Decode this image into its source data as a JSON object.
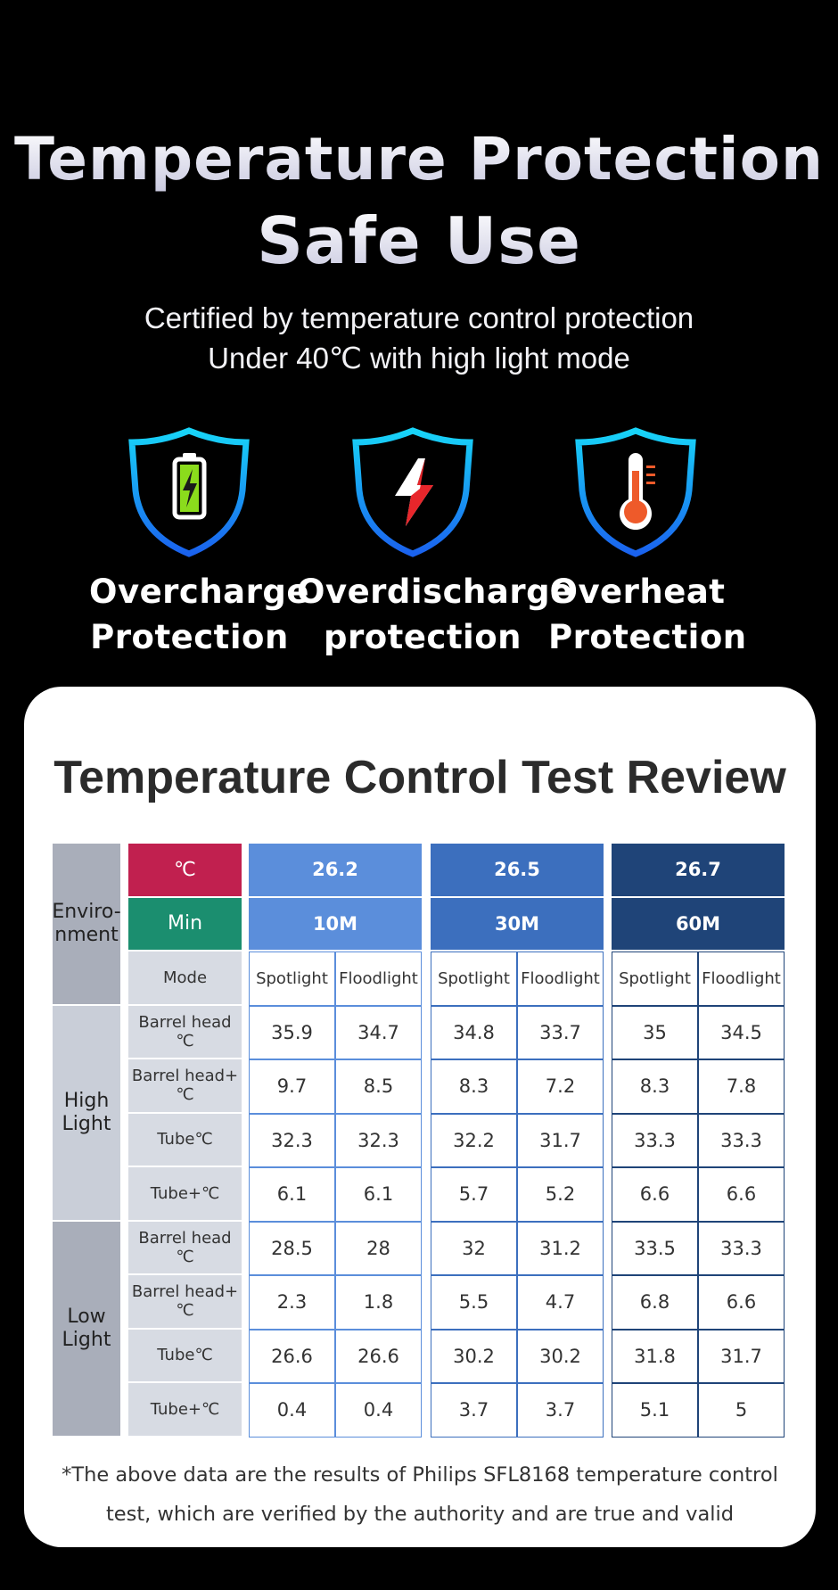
{
  "hero": {
    "title_line1": "Temperature Protection",
    "title_line2": "Safe Use",
    "subtitle_line1": "Certified by temperature control protection",
    "subtitle_line2": "Under 40℃ with high light mode"
  },
  "features": [
    {
      "icon": "battery-icon",
      "line1": "Overcharge",
      "line2": "Protection"
    },
    {
      "icon": "lightning-icon",
      "line1": "Overdischarge",
      "line2": "protection"
    },
    {
      "icon": "thermometer-icon",
      "line1": "Overheat",
      "line2": "Protection"
    }
  ],
  "card": {
    "title": "Temperature Control Test Review",
    "footnote_line1": "*The above data are the results of Philips SFL8168 temperature control",
    "footnote_line2": "test, which are verified by the authority and are true and valid"
  },
  "table": {
    "environment_label": "Enviro-\nnment",
    "degc_label": "℃",
    "min_label": "Min",
    "mode_label": "Mode",
    "groups": [
      {
        "ambient": "26.2",
        "duration": "10M",
        "color": "#5b8edb",
        "modes": [
          "Spotlight",
          "Floodlight"
        ]
      },
      {
        "ambient": "26.5",
        "duration": "30M",
        "color": "#3c6fbe",
        "modes": [
          "Spotlight",
          "Floodlight"
        ]
      },
      {
        "ambient": "26.7",
        "duration": "60M",
        "color": "#1f4478",
        "modes": [
          "Spotlight",
          "Floodlight"
        ]
      }
    ],
    "sections": [
      {
        "label": "High\nLight",
        "rows": [
          {
            "label": "Barrel head ℃",
            "values": [
              "35.9",
              "34.7",
              "34.8",
              "33.7",
              "35",
              "34.5"
            ]
          },
          {
            "label": "Barrel head+℃",
            "values": [
              "9.7",
              "8.5",
              "8.3",
              "7.2",
              "8.3",
              "7.8"
            ]
          },
          {
            "label": "Tube℃",
            "values": [
              "32.3",
              "32.3",
              "32.2",
              "31.7",
              "33.3",
              "33.3"
            ]
          },
          {
            "label": "Tube+℃",
            "values": [
              "6.1",
              "6.1",
              "5.7",
              "5.2",
              "6.6",
              "6.6"
            ]
          }
        ]
      },
      {
        "label": "Low\nLight",
        "rows": [
          {
            "label": "Barrel head ℃",
            "values": [
              "28.5",
              "28",
              "32",
              "31.2",
              "33.5",
              "33.3"
            ]
          },
          {
            "label": "Barrel head+℃",
            "values": [
              "2.3",
              "1.8",
              "5.5",
              "4.7",
              "6.8",
              "6.6"
            ]
          },
          {
            "label": "Tube℃",
            "values": [
              "26.6",
              "26.6",
              "30.2",
              "30.2",
              "31.8",
              "31.7"
            ]
          },
          {
            "label": "Tube+℃",
            "values": [
              "0.4",
              "0.4",
              "3.7",
              "3.7",
              "5.1",
              "5"
            ]
          }
        ]
      }
    ]
  }
}
